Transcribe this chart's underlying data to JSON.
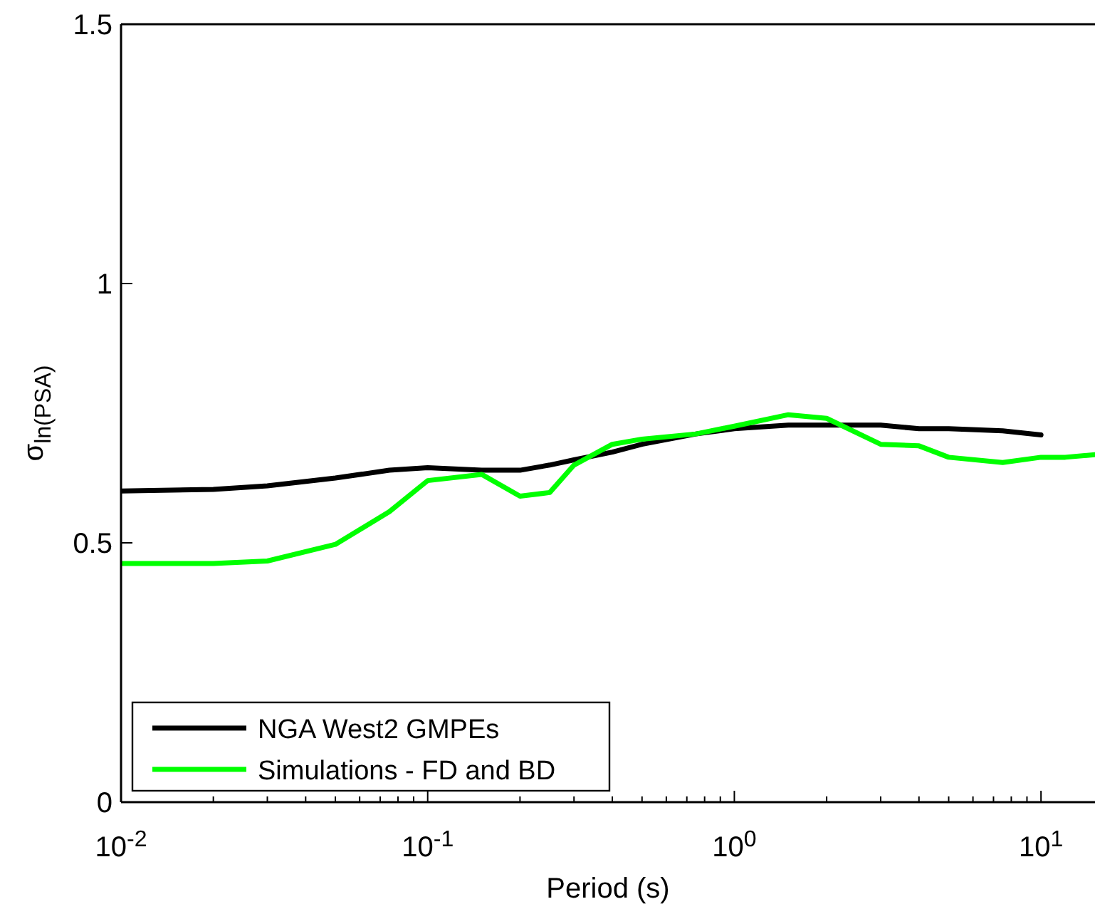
{
  "chart_data": {
    "type": "line",
    "xlabel": "Period (s)",
    "ylabel": "σ$_{ln(PSA)}$",
    "log": "x",
    "xlim": [
      0.01,
      15
    ],
    "ylim": [
      0,
      1.5
    ],
    "xticks": [
      {
        "value": 0.01,
        "label": "10$^{-2}$"
      },
      {
        "value": 0.1,
        "label": "10$^{-1}$"
      },
      {
        "value": 1,
        "label": "10$^{0}$"
      },
      {
        "value": 10,
        "label": "10$^{1}$"
      }
    ],
    "yticks": [
      0,
      0.5,
      1,
      1.5
    ],
    "grid": false,
    "legend": "bottom left",
    "marker": "none",
    "line_style": "solid",
    "series": [
      {
        "name": "NGA West2 GMPEs",
        "color": "#000000",
        "x": [
          0.01,
          0.02,
          0.03,
          0.05,
          0.075,
          0.1,
          0.15,
          0.2,
          0.25,
          0.3,
          0.4,
          0.5,
          0.75,
          1,
          1.5,
          2,
          3,
          4,
          5,
          7.5,
          10
        ],
        "values": [
          0.6,
          0.603,
          0.61,
          0.625,
          0.64,
          0.645,
          0.64,
          0.64,
          0.65,
          0.66,
          0.675,
          0.69,
          0.71,
          0.72,
          0.727,
          0.727,
          0.727,
          0.72,
          0.72,
          0.716,
          0.708
        ]
      },
      {
        "name": "Simulations - FD and BD",
        "color": "#00ff00",
        "x": [
          0.01,
          0.02,
          0.03,
          0.05,
          0.075,
          0.1,
          0.15,
          0.2,
          0.25,
          0.3,
          0.4,
          0.5,
          0.75,
          1,
          1.5,
          2,
          3,
          4,
          5,
          7.5,
          10,
          12,
          15
        ],
        "values": [
          0.46,
          0.46,
          0.465,
          0.497,
          0.56,
          0.62,
          0.632,
          0.59,
          0.597,
          0.65,
          0.69,
          0.7,
          0.71,
          0.725,
          0.747,
          0.74,
          0.69,
          0.687,
          0.665,
          0.655,
          0.665,
          0.665,
          0.67
        ]
      }
    ]
  }
}
